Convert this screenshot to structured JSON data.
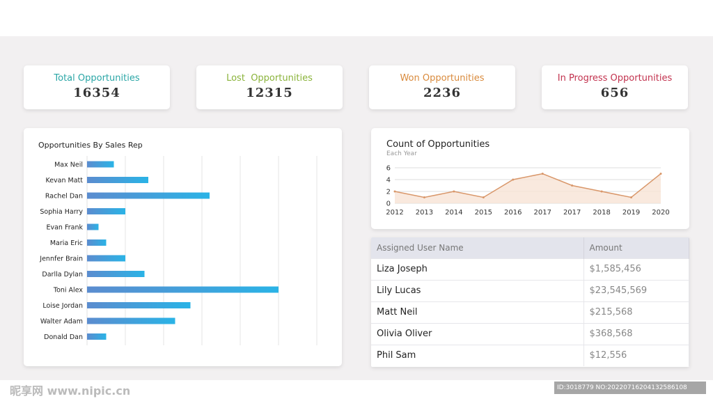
{
  "kpis": [
    {
      "label": "Total Opportunities",
      "value": "16354",
      "color": "#2aa6a6"
    },
    {
      "label": "Lost  Opportunities",
      "value": "12315",
      "color": "#8ab33a"
    },
    {
      "label": "Won Opportunities",
      "value": "2236",
      "color": "#d98a3c"
    },
    {
      "label": "In Progress Opportunities",
      "value": "656",
      "color": "#c2324e"
    }
  ],
  "line_header": {
    "title": "Count of Opportunities",
    "subtitle": "Each Year"
  },
  "table": {
    "columns": [
      "Assigned User Name",
      "Amount"
    ],
    "rows": [
      {
        "name": "Liza Joseph",
        "amount": "$1,585,456"
      },
      {
        "name": "Lily Lucas",
        "amount": "$23,545,569"
      },
      {
        "name": "Matt Neil",
        "amount": "$215,568"
      },
      {
        "name": "Olivia Oliver",
        "amount": "$368,568"
      },
      {
        "name": "Phil Sam",
        "amount": "$12,556"
      }
    ]
  },
  "watermark": {
    "left": "昵享网 www.nipic.cn",
    "right": "ID:3018779 NO:20220716204132586108"
  },
  "chart_data": [
    {
      "type": "bar",
      "title": "Opportunities By Sales Rep",
      "orientation": "horizontal",
      "categories": [
        "Max Neil",
        "Kevan Matt",
        "Rachel Dan",
        "Sophia Harry",
        "Evan Frank",
        "Maria Eric",
        "Jennfer Brain",
        "Darlla Dylan",
        "Toni Alex",
        "Loise Jordan",
        "Walter Adam",
        "Donald Dan"
      ],
      "values": [
        7,
        16,
        32,
        10,
        3,
        5,
        10,
        15,
        50,
        27,
        23,
        5
      ],
      "xlim": [
        0,
        60
      ],
      "grid": true,
      "bar_color_start": "#5b8ccf",
      "bar_color_end": "#2ab3e6"
    },
    {
      "type": "area",
      "title": "Count of Opportunities",
      "subtitle": "Each Year",
      "x": [
        "2012",
        "2013",
        "2014",
        "2015",
        "2016",
        "2017",
        "2017",
        "2018",
        "2019",
        "2020"
      ],
      "values": [
        2,
        1,
        2,
        1,
        4,
        5,
        3,
        2,
        1,
        5
      ],
      "yticks": [
        0,
        2,
        4,
        6
      ],
      "ylim": [
        0,
        6
      ],
      "grid": true,
      "line_color": "#d9976a",
      "fill_color": "#f7e3d6"
    }
  ]
}
